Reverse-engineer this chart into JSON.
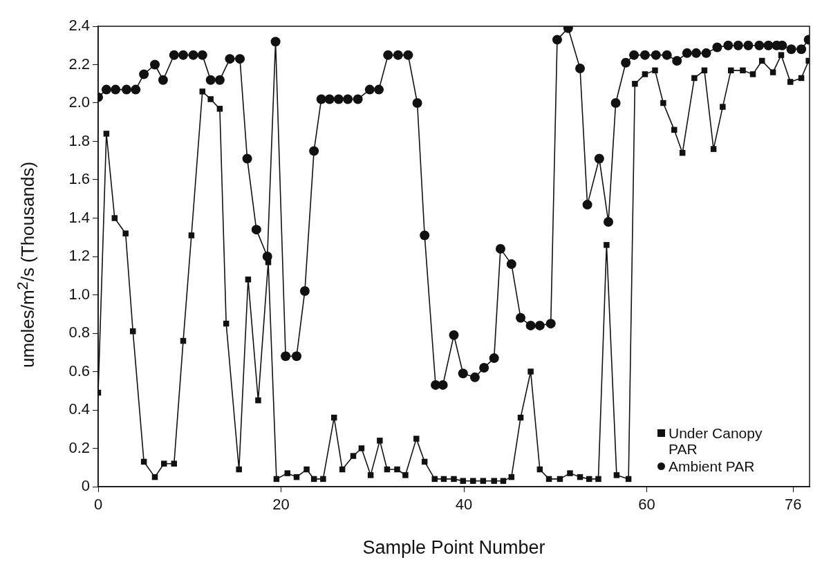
{
  "chart_data": {
    "type": "line",
    "xlabel": "Sample Point Number",
    "ylabel": "umoles/m$^{2}$/s (Thousands)",
    "xlim": [
      0,
      77.8
    ],
    "xticks": [
      0,
      20,
      40,
      60,
      76
    ],
    "ylim": [
      0,
      2.4
    ],
    "yticks": [
      0,
      0.2,
      0.4,
      0.6,
      0.8,
      {
        "value": 1,
        "label": "1.0"
      },
      1.2,
      1.4,
      1.6,
      1.8,
      {
        "value": 2,
        "label": "2.0"
      },
      2.2,
      2.4
    ],
    "grid": false,
    "legend": "bottom right",
    "line_style": "solid",
    "series": [
      {
        "name": "Under Canopy PAR",
        "color": "#111111",
        "marker": "square",
        "x": [
          0,
          0.9,
          1.8,
          3.0,
          3.8,
          5.0,
          6.2,
          7.2,
          8.3,
          9.3,
          10.2,
          11.4,
          12.3,
          13.3,
          14.0,
          15.4,
          16.4,
          17.5,
          18.6,
          19.5,
          20.7,
          21.7,
          22.8,
          23.6,
          24.6,
          25.8,
          26.7,
          27.9,
          28.8,
          29.8,
          30.8,
          31.6,
          32.7,
          33.6,
          34.8,
          35.7,
          36.8,
          37.8,
          38.9,
          39.9,
          41.0,
          42.1,
          43.3,
          44.3,
          45.2,
          46.2,
          47.3,
          48.3,
          49.3,
          50.5,
          51.6,
          52.7,
          53.7,
          54.7,
          55.6,
          56.7,
          58.0,
          58.7,
          59.8,
          60.9,
          61.8,
          63.0,
          63.9,
          65.2,
          66.3,
          67.3,
          68.3,
          69.2,
          70.5,
          71.6,
          72.6,
          73.8,
          74.7,
          75.7,
          76.9,
          77.7
        ],
        "values": [
          0.49,
          1.84,
          1.4,
          1.32,
          0.81,
          0.13,
          0.05,
          0.12,
          0.12,
          0.76,
          1.31,
          2.06,
          2.02,
          1.97,
          0.85,
          0.09,
          1.08,
          0.45,
          1.17,
          0.04,
          0.07,
          0.05,
          0.09,
          0.04,
          0.04,
          0.36,
          0.09,
          0.16,
          0.2,
          0.06,
          0.24,
          0.09,
          0.09,
          0.06,
          0.25,
          0.13,
          0.04,
          0.04,
          0.04,
          0.03,
          0.03,
          0.03,
          0.03,
          0.03,
          0.05,
          0.36,
          0.6,
          0.09,
          0.04,
          0.04,
          0.07,
          0.05,
          0.04,
          0.04,
          1.26,
          0.06,
          0.04,
          2.1,
          2.15,
          2.17,
          2.0,
          1.86,
          1.74,
          2.13,
          2.17,
          1.76,
          1.98,
          2.17,
          2.17,
          2.15,
          2.22,
          2.16,
          2.25,
          2.11,
          2.13,
          2.22
        ]
      },
      {
        "name": "Ambient PAR",
        "color": "#111111",
        "marker": "circle",
        "x": [
          0,
          0.9,
          1.9,
          3.1,
          4.1,
          5.0,
          6.2,
          7.1,
          8.3,
          9.3,
          10.4,
          11.4,
          12.3,
          13.3,
          14.4,
          15.5,
          16.3,
          17.3,
          18.5,
          19.4,
          20.5,
          21.7,
          22.6,
          23.6,
          24.4,
          25.3,
          26.3,
          27.3,
          28.4,
          29.7,
          30.7,
          31.7,
          32.8,
          33.9,
          34.9,
          35.7,
          36.9,
          37.7,
          38.9,
          39.9,
          41.2,
          42.2,
          43.3,
          44.0,
          45.2,
          46.2,
          47.3,
          48.3,
          49.5,
          50.2,
          51.4,
          52.7,
          53.5,
          54.8,
          55.8,
          56.6,
          57.7,
          58.6,
          59.8,
          61.0,
          62.2,
          63.3,
          64.4,
          65.4,
          66.5,
          67.7,
          68.9,
          70.0,
          71.1,
          72.3,
          73.3,
          74.2,
          74.8,
          75.8,
          76.9,
          77.7
        ],
        "values": [
          2.03,
          2.07,
          2.07,
          2.07,
          2.07,
          2.15,
          2.2,
          2.12,
          2.25,
          2.25,
          2.25,
          2.25,
          2.12,
          2.12,
          2.23,
          2.23,
          1.71,
          1.34,
          1.2,
          2.32,
          0.68,
          0.68,
          1.02,
          1.75,
          2.02,
          2.02,
          2.02,
          2.02,
          2.02,
          2.07,
          2.07,
          2.25,
          2.25,
          2.25,
          2.0,
          1.31,
          0.53,
          0.53,
          0.79,
          0.59,
          0.57,
          0.62,
          0.67,
          1.24,
          1.16,
          0.88,
          0.84,
          0.84,
          0.85,
          2.33,
          2.39,
          2.18,
          1.47,
          1.71,
          1.38,
          2.0,
          2.21,
          2.25,
          2.25,
          2.25,
          2.25,
          2.22,
          2.26,
          2.26,
          2.26,
          2.29,
          2.3,
          2.3,
          2.3,
          2.3,
          2.3,
          2.3,
          2.3,
          2.28,
          2.28,
          2.33
        ]
      }
    ]
  }
}
